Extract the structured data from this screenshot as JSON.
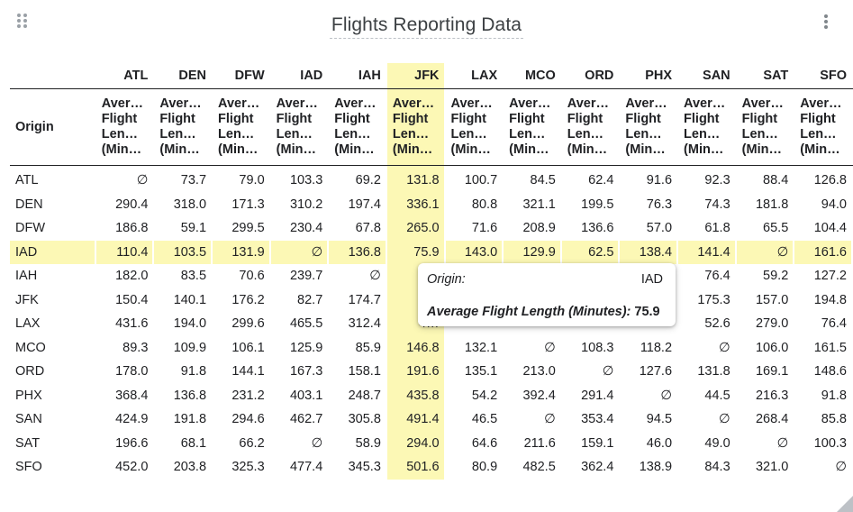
{
  "title": "Flights Reporting Data",
  "icons": {
    "drag": "drag-handle-icon",
    "menu": "more-vert-icon",
    "resize": "resize-corner-icon"
  },
  "colors": {
    "highlight": "#fcf8b5",
    "text": "#202124"
  },
  "table": {
    "origin_header": "Origin",
    "measure_header": "Aver…\nFlight\nLen…\n(Min…",
    "destinations": [
      "ATL",
      "DEN",
      "DFW",
      "IAD",
      "IAH",
      "JFK",
      "LAX",
      "MCO",
      "ORD",
      "PHX",
      "SAN",
      "SAT",
      "SFO"
    ],
    "null_symbol": "∅",
    "highlight": {
      "column": "JFK",
      "row": "IAD"
    },
    "rows": [
      {
        "origin": "ATL",
        "values": [
          "∅",
          "73.7",
          "79.0",
          "103.3",
          "69.2",
          "131.8",
          "100.7",
          "84.5",
          "62.4",
          "91.6",
          "92.3",
          "88.4",
          "126.8"
        ]
      },
      {
        "origin": "DEN",
        "values": [
          "290.4",
          "318.0",
          "171.3",
          "310.2",
          "197.4",
          "336.1",
          "80.8",
          "321.1",
          "199.5",
          "76.3",
          "74.3",
          "181.8",
          "94.0"
        ]
      },
      {
        "origin": "DFW",
        "values": [
          "186.8",
          "59.1",
          "299.5",
          "230.4",
          "67.8",
          "265.0",
          "71.6",
          "208.9",
          "136.6",
          "57.0",
          "61.8",
          "65.5",
          "104.4"
        ]
      },
      {
        "origin": "IAD",
        "values": [
          "110.4",
          "103.5",
          "131.9",
          "∅",
          "136.8",
          "75.9",
          "143.0",
          "129.9",
          "62.5",
          "138.4",
          "141.4",
          "∅",
          "161.6"
        ]
      },
      {
        "origin": "IAH",
        "values": [
          "182.0",
          "83.5",
          "70.6",
          "239.7",
          "∅",
          "2…",
          "",
          "",
          "",
          "",
          "76.4",
          "59.2",
          "127.2"
        ]
      },
      {
        "origin": "JFK",
        "values": [
          "150.4",
          "140.1",
          "176.2",
          "82.7",
          "174.7",
          "",
          "",
          "",
          "",
          "",
          "175.3",
          "157.0",
          "194.8"
        ]
      },
      {
        "origin": "LAX",
        "values": [
          "431.6",
          "194.0",
          "299.6",
          "465.5",
          "312.4",
          "4…",
          "",
          "",
          "",
          "",
          "52.6",
          "279.0",
          "76.4"
        ]
      },
      {
        "origin": "MCO",
        "values": [
          "89.3",
          "109.9",
          "106.1",
          "125.9",
          "85.9",
          "146.8",
          "132.1",
          "∅",
          "108.3",
          "118.2",
          "∅",
          "106.0",
          "161.5"
        ]
      },
      {
        "origin": "ORD",
        "values": [
          "178.0",
          "91.8",
          "144.1",
          "167.3",
          "158.1",
          "191.6",
          "135.1",
          "213.0",
          "∅",
          "127.6",
          "131.8",
          "169.1",
          "148.6"
        ]
      },
      {
        "origin": "PHX",
        "values": [
          "368.4",
          "136.8",
          "231.2",
          "403.1",
          "248.7",
          "435.8",
          "54.2",
          "392.4",
          "291.4",
          "∅",
          "44.5",
          "216.3",
          "91.8"
        ]
      },
      {
        "origin": "SAN",
        "values": [
          "424.9",
          "191.8",
          "294.6",
          "462.7",
          "305.8",
          "491.4",
          "46.5",
          "∅",
          "353.4",
          "94.5",
          "∅",
          "268.4",
          "85.8"
        ]
      },
      {
        "origin": "SAT",
        "values": [
          "196.6",
          "68.1",
          "66.2",
          "∅",
          "58.9",
          "294.0",
          "64.6",
          "211.6",
          "159.1",
          "46.0",
          "49.0",
          "∅",
          "100.3"
        ]
      },
      {
        "origin": "SFO",
        "values": [
          "452.0",
          "203.8",
          "325.3",
          "477.4",
          "345.3",
          "501.6",
          "80.9",
          "482.5",
          "362.4",
          "138.9",
          "84.3",
          "321.0",
          "∅"
        ]
      }
    ]
  },
  "tooltip": {
    "origin_label": "Origin:",
    "origin_value": "IAD",
    "measure_label": "Average Flight Length (Minutes):",
    "measure_value": "75.9"
  }
}
